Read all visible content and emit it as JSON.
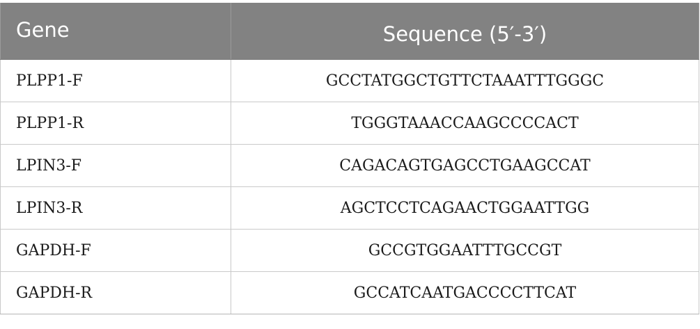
{
  "table": {
    "headers": {
      "gene": "Gene",
      "sequence": "Sequence (5′-3′)"
    },
    "rows": [
      {
        "gene": "PLPP1-F",
        "sequence": "GCCTATGGCTGTTCTAAATTTGGGC"
      },
      {
        "gene": "PLPP1-R",
        "sequence": "TGGGTAAACCAAGCCCCACT"
      },
      {
        "gene": "LPIN3-F",
        "sequence": "CAGACAGTGAGCCTGAAGCCAT"
      },
      {
        "gene": "LPIN3-R",
        "sequence": "AGCTCCTCAGAACTGGAATTGG"
      },
      {
        "gene": "GAPDH-F",
        "sequence": "GCCGTGGAATTTGCCGT"
      },
      {
        "gene": "GAPDH-R",
        "sequence": "GCCATCAATGACCCCTTCAT"
      }
    ]
  },
  "colors": {
    "header_bg": "#828282",
    "header_text": "#ffffff",
    "body_text": "#1a1a1a",
    "grid": "#c9c9c9"
  }
}
